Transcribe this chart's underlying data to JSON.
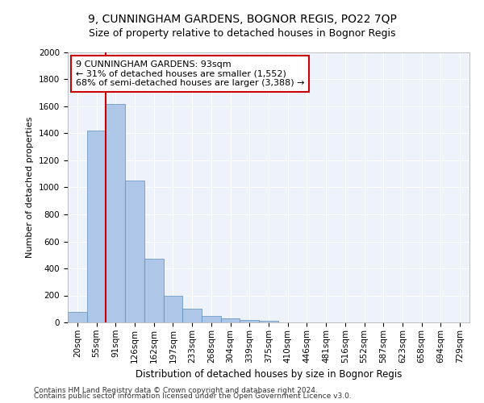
{
  "title1": "9, CUNNINGHAM GARDENS, BOGNOR REGIS, PO22 7QP",
  "title2": "Size of property relative to detached houses in Bognor Regis",
  "xlabel": "Distribution of detached houses by size in Bognor Regis",
  "ylabel": "Number of detached properties",
  "categories": [
    "20sqm",
    "55sqm",
    "91sqm",
    "126sqm",
    "162sqm",
    "197sqm",
    "233sqm",
    "268sqm",
    "304sqm",
    "339sqm",
    "375sqm",
    "410sqm",
    "446sqm",
    "481sqm",
    "516sqm",
    "552sqm",
    "587sqm",
    "623sqm",
    "658sqm",
    "694sqm",
    "729sqm"
  ],
  "values": [
    75,
    1420,
    1620,
    1050,
    470,
    200,
    100,
    50,
    30,
    20,
    10,
    0,
    0,
    0,
    0,
    0,
    0,
    0,
    0,
    0,
    0
  ],
  "bar_color": "#aec6e8",
  "bar_edge_color": "#5a8fc0",
  "vline_color": "#cc0000",
  "annotation_text": "9 CUNNINGHAM GARDENS: 93sqm\n← 31% of detached houses are smaller (1,552)\n68% of semi-detached houses are larger (3,388) →",
  "annotation_box_color": "#ffffff",
  "annotation_box_edge": "#cc0000",
  "ylim": [
    0,
    2000
  ],
  "yticks": [
    0,
    200,
    400,
    600,
    800,
    1000,
    1200,
    1400,
    1600,
    1800,
    2000
  ],
  "footer1": "Contains HM Land Registry data © Crown copyright and database right 2024.",
  "footer2": "Contains public sector information licensed under the Open Government Licence v3.0.",
  "bg_color": "#edf2fb",
  "title1_fontsize": 10,
  "title2_fontsize": 9,
  "xlabel_fontsize": 8.5,
  "ylabel_fontsize": 8,
  "tick_fontsize": 7.5,
  "annotation_fontsize": 8,
  "footer_fontsize": 6.5
}
